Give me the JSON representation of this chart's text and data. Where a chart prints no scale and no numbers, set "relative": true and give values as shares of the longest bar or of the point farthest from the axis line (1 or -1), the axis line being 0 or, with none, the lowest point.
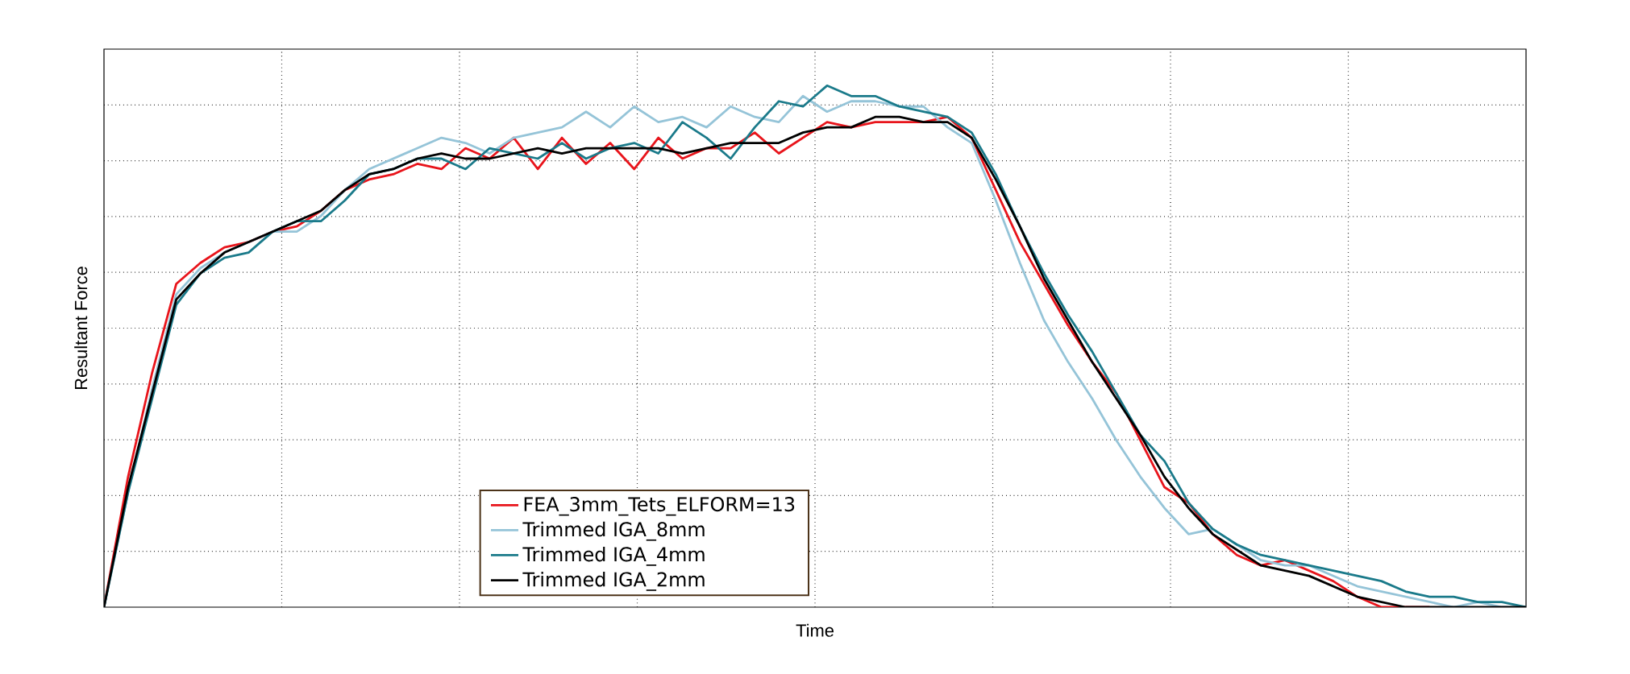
{
  "chart_data": {
    "type": "line",
    "xlabel": "Time",
    "ylabel": "Resultant Force",
    "relative": true,
    "grid": true,
    "legend": "bottom",
    "tick_labels": false,
    "categories": [
      null,
      null,
      null,
      null,
      null,
      null,
      null,
      null,
      null,
      null,
      null,
      null,
      null,
      null,
      null,
      null,
      null,
      null,
      null,
      null,
      null,
      null,
      null,
      null,
      null,
      null,
      null,
      null,
      null,
      null,
      null,
      null,
      null,
      null,
      null,
      null,
      null,
      null,
      null,
      null,
      null,
      null,
      null,
      null,
      null,
      null,
      null,
      null,
      null,
      null,
      null,
      null,
      null,
      null,
      null,
      null,
      null,
      null,
      null,
      null
    ],
    "series": [
      {
        "name": "FEA_3mm_Tets_ELFORM=13",
        "color": "#e8141b",
        "values": [
          0,
          0.25,
          0.45,
          0.62,
          0.66,
          0.69,
          0.7,
          0.72,
          0.73,
          0.76,
          0.8,
          0.82,
          0.83,
          0.85,
          0.84,
          0.88,
          0.86,
          0.9,
          0.84,
          0.9,
          0.85,
          0.89,
          0.84,
          0.9,
          0.86,
          0.88,
          0.88,
          0.91,
          0.87,
          0.9,
          0.93,
          0.92,
          0.93,
          0.93,
          0.93,
          0.94,
          0.9,
          0.8,
          0.7,
          0.62,
          0.54,
          0.47,
          0.41,
          0.32,
          0.23,
          0.2,
          0.14,
          0.1,
          0.08,
          0.09,
          0.07,
          0.05,
          0.02,
          0,
          0,
          0,
          null,
          null,
          null,
          null
        ]
      },
      {
        "name": "Trimmed IGA_8mm",
        "color": "#95c4d8",
        "values": [
          0,
          0.22,
          0.42,
          0.6,
          0.65,
          0.68,
          0.7,
          0.72,
          0.72,
          0.75,
          0.8,
          0.84,
          0.86,
          0.88,
          0.9,
          0.89,
          0.87,
          0.9,
          0.91,
          0.92,
          0.95,
          0.92,
          0.96,
          0.93,
          0.94,
          0.92,
          0.96,
          0.94,
          0.93,
          0.98,
          0.95,
          0.97,
          0.97,
          0.96,
          0.96,
          0.92,
          0.89,
          0.78,
          0.66,
          0.55,
          0.47,
          0.4,
          0.32,
          0.25,
          0.19,
          0.14,
          0.15,
          0.12,
          0.09,
          0.08,
          0.08,
          0.06,
          0.04,
          0.03,
          0.02,
          0.01,
          0,
          0.01,
          0,
          0
        ]
      },
      {
        "name": "Trimmed IGA_4mm",
        "color": "#1a7a8a",
        "values": [
          0,
          0.22,
          0.4,
          0.58,
          0.64,
          0.67,
          0.68,
          0.72,
          0.74,
          0.74,
          0.78,
          0.83,
          0.84,
          0.86,
          0.86,
          0.84,
          0.88,
          0.87,
          0.86,
          0.89,
          0.86,
          0.88,
          0.89,
          0.87,
          0.93,
          0.9,
          0.86,
          0.92,
          0.97,
          0.96,
          1.0,
          0.98,
          0.98,
          0.96,
          0.95,
          0.94,
          0.91,
          0.83,
          0.73,
          0.64,
          0.56,
          0.49,
          0.41,
          0.33,
          0.28,
          0.2,
          0.15,
          0.12,
          0.1,
          0.09,
          0.08,
          0.07,
          0.06,
          0.05,
          0.03,
          0.02,
          0.02,
          0.01,
          0.01,
          0
        ]
      },
      {
        "name": "Trimmed IGA_2mm",
        "color": "#000000",
        "values": [
          0,
          0.23,
          0.41,
          0.59,
          0.64,
          0.68,
          0.7,
          0.72,
          0.74,
          0.76,
          0.8,
          0.83,
          0.84,
          0.86,
          0.87,
          0.86,
          0.86,
          0.87,
          0.88,
          0.87,
          0.88,
          0.88,
          0.88,
          0.88,
          0.87,
          0.88,
          0.89,
          0.89,
          0.89,
          0.91,
          0.92,
          0.92,
          0.94,
          0.94,
          0.93,
          0.93,
          0.9,
          0.82,
          0.73,
          0.63,
          0.55,
          0.47,
          0.4,
          0.33,
          0.25,
          0.19,
          0.14,
          0.11,
          0.08,
          0.07,
          0.06,
          0.04,
          0.02,
          0.01,
          0,
          0,
          0,
          0,
          0,
          0
        ]
      }
    ]
  }
}
